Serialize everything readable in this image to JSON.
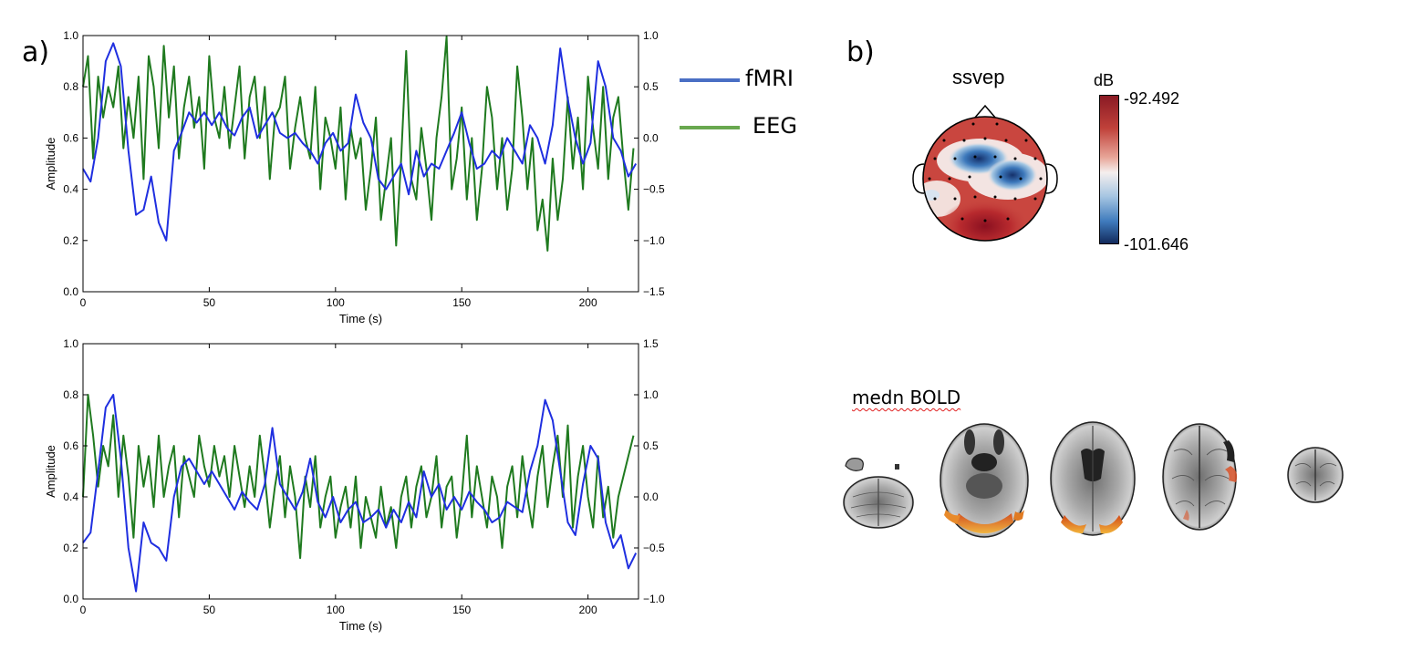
{
  "panel_labels": {
    "a": "a)",
    "b": "b)"
  },
  "legend": [
    {
      "label": "fMRI",
      "color": "#4a6fc4"
    },
    {
      "label": "EEG",
      "color": "#69a84f"
    }
  ],
  "chart_data": [
    {
      "type": "line",
      "xlabel": "Time (s)",
      "ylabel": "Amplitude",
      "xlim": [
        0,
        220
      ],
      "ylim_left": [
        0.0,
        1.0
      ],
      "ylim_right": [
        -1.5,
        1.0
      ],
      "xticks": [
        "0",
        "50",
        "100",
        "150",
        "200"
      ],
      "yticks_left": [
        "0.0",
        "0.2",
        "0.4",
        "0.6",
        "0.8",
        "1.0"
      ],
      "yticks_right": [
        "−1.5",
        "−1.0",
        "−0.5",
        "0.0",
        "0.5",
        "1.0"
      ],
      "series": [
        {
          "name": "fMRI",
          "axis": "left",
          "color": "#1f2fe0",
          "x": [
            0,
            3,
            6,
            9,
            12,
            15,
            18,
            21,
            24,
            27,
            30,
            33,
            36,
            39,
            42,
            45,
            48,
            51,
            54,
            57,
            60,
            63,
            66,
            69,
            72,
            75,
            78,
            81,
            84,
            87,
            90,
            93,
            96,
            99,
            102,
            105,
            108,
            111,
            114,
            117,
            120,
            123,
            126,
            129,
            132,
            135,
            138,
            141,
            144,
            147,
            150,
            153,
            156,
            159,
            162,
            165,
            168,
            171,
            174,
            177,
            180,
            183,
            186,
            189,
            192,
            195,
            198,
            201,
            204,
            207,
            210,
            213,
            216,
            219
          ],
          "values": [
            0.48,
            0.43,
            0.6,
            0.9,
            0.97,
            0.88,
            0.55,
            0.3,
            0.32,
            0.45,
            0.27,
            0.2,
            0.55,
            0.62,
            0.7,
            0.66,
            0.7,
            0.65,
            0.7,
            0.64,
            0.61,
            0.68,
            0.72,
            0.6,
            0.65,
            0.7,
            0.62,
            0.6,
            0.62,
            0.58,
            0.55,
            0.5,
            0.58,
            0.62,
            0.55,
            0.58,
            0.77,
            0.66,
            0.6,
            0.44,
            0.4,
            0.45,
            0.5,
            0.38,
            0.55,
            0.45,
            0.5,
            0.48,
            0.55,
            0.62,
            0.7,
            0.58,
            0.48,
            0.5,
            0.55,
            0.52,
            0.6,
            0.55,
            0.5,
            0.65,
            0.6,
            0.5,
            0.65,
            0.95,
            0.75,
            0.6,
            0.5,
            0.58,
            0.9,
            0.8,
            0.6,
            0.55,
            0.45,
            0.5
          ]
        },
        {
          "name": "EEG",
          "axis": "right",
          "color": "#1f7a1f",
          "x": [
            0,
            2,
            4,
            6,
            8,
            10,
            12,
            14,
            16,
            18,
            20,
            22,
            24,
            26,
            28,
            30,
            32,
            34,
            36,
            38,
            40,
            42,
            44,
            46,
            48,
            50,
            52,
            54,
            56,
            58,
            60,
            62,
            64,
            66,
            68,
            70,
            72,
            74,
            76,
            78,
            80,
            82,
            84,
            86,
            88,
            90,
            92,
            94,
            96,
            98,
            100,
            102,
            104,
            106,
            108,
            110,
            112,
            114,
            116,
            118,
            120,
            122,
            124,
            126,
            128,
            130,
            132,
            134,
            136,
            138,
            140,
            142,
            144,
            146,
            148,
            150,
            152,
            154,
            156,
            158,
            160,
            162,
            164,
            166,
            168,
            170,
            172,
            174,
            176,
            178,
            180,
            182,
            184,
            186,
            188,
            190,
            192,
            194,
            196,
            198,
            200,
            202,
            204,
            206,
            208,
            210,
            212,
            214,
            216,
            218
          ],
          "values": [
            0.5,
            0.8,
            -0.2,
            0.6,
            0.2,
            0.5,
            0.3,
            0.7,
            -0.1,
            0.4,
            0.0,
            0.6,
            -0.4,
            0.8,
            0.5,
            -0.1,
            0.9,
            0.2,
            0.7,
            -0.2,
            0.3,
            0.6,
            0.1,
            0.4,
            -0.3,
            0.8,
            0.2,
            0.0,
            0.5,
            -0.1,
            0.3,
            0.7,
            -0.2,
            0.4,
            0.6,
            0.0,
            0.5,
            -0.4,
            0.2,
            0.3,
            0.6,
            -0.3,
            0.1,
            0.4,
            0.0,
            -0.2,
            0.5,
            -0.5,
            0.2,
            0.0,
            -0.3,
            0.3,
            -0.6,
            0.1,
            -0.2,
            0.0,
            -0.7,
            -0.3,
            0.2,
            -0.8,
            -0.4,
            0.0,
            -1.05,
            -0.2,
            0.85,
            -0.4,
            -0.6,
            0.1,
            -0.3,
            -0.8,
            0.0,
            0.4,
            0.99,
            -0.5,
            -0.2,
            0.3,
            -0.6,
            0.0,
            -0.8,
            -0.3,
            0.5,
            0.2,
            -0.5,
            0.0,
            -0.7,
            -0.3,
            0.7,
            0.2,
            -0.5,
            0.0,
            -0.9,
            -0.6,
            -1.1,
            -0.2,
            -0.8,
            -0.4,
            0.4,
            -0.3,
            0.2,
            -0.5,
            0.6,
            0.1,
            -0.3,
            0.5,
            -0.4,
            0.2,
            0.4,
            -0.2,
            -0.7,
            -0.1
          ]
        }
      ]
    },
    {
      "type": "line",
      "xlabel": "Time (s)",
      "ylabel": "Amplitude",
      "xlim": [
        0,
        220
      ],
      "ylim_left": [
        0.0,
        1.0
      ],
      "ylim_right": [
        -1.0,
        1.5
      ],
      "xticks": [
        "0",
        "50",
        "100",
        "150",
        "200"
      ],
      "yticks_left": [
        "0.0",
        "0.2",
        "0.4",
        "0.6",
        "0.8",
        "1.0"
      ],
      "yticks_right": [
        "−1.0",
        "−0.5",
        "0.0",
        "0.5",
        "1.0",
        "1.5"
      ],
      "series": [
        {
          "name": "fMRI",
          "axis": "left",
          "color": "#1f2fe0",
          "x": [
            0,
            3,
            6,
            9,
            12,
            15,
            18,
            21,
            24,
            27,
            30,
            33,
            36,
            39,
            42,
            45,
            48,
            51,
            54,
            57,
            60,
            63,
            66,
            69,
            72,
            75,
            78,
            81,
            84,
            87,
            90,
            93,
            96,
            99,
            102,
            105,
            108,
            111,
            114,
            117,
            120,
            123,
            126,
            129,
            132,
            135,
            138,
            141,
            144,
            147,
            150,
            153,
            156,
            159,
            162,
            165,
            168,
            171,
            174,
            177,
            180,
            183,
            186,
            189,
            192,
            195,
            198,
            201,
            204,
            207,
            210,
            213,
            216,
            219
          ],
          "values": [
            0.22,
            0.26,
            0.5,
            0.75,
            0.8,
            0.55,
            0.2,
            0.03,
            0.3,
            0.22,
            0.2,
            0.15,
            0.4,
            0.52,
            0.55,
            0.5,
            0.45,
            0.5,
            0.45,
            0.4,
            0.35,
            0.42,
            0.38,
            0.35,
            0.45,
            0.67,
            0.45,
            0.4,
            0.35,
            0.42,
            0.55,
            0.38,
            0.32,
            0.4,
            0.3,
            0.35,
            0.38,
            0.3,
            0.32,
            0.35,
            0.28,
            0.35,
            0.3,
            0.38,
            0.32,
            0.5,
            0.4,
            0.45,
            0.35,
            0.4,
            0.35,
            0.42,
            0.38,
            0.35,
            0.3,
            0.32,
            0.38,
            0.36,
            0.34,
            0.5,
            0.6,
            0.78,
            0.7,
            0.5,
            0.3,
            0.25,
            0.45,
            0.6,
            0.55,
            0.3,
            0.2,
            0.25,
            0.12,
            0.18
          ]
        },
        {
          "name": "EEG",
          "axis": "right",
          "color": "#1f7a1f",
          "x": [
            0,
            2,
            4,
            6,
            8,
            10,
            12,
            14,
            16,
            18,
            20,
            22,
            24,
            26,
            28,
            30,
            32,
            34,
            36,
            38,
            40,
            42,
            44,
            46,
            48,
            50,
            52,
            54,
            56,
            58,
            60,
            62,
            64,
            66,
            68,
            70,
            72,
            74,
            76,
            78,
            80,
            82,
            84,
            86,
            88,
            90,
            92,
            94,
            96,
            98,
            100,
            102,
            104,
            106,
            108,
            110,
            112,
            114,
            116,
            118,
            120,
            122,
            124,
            126,
            128,
            130,
            132,
            134,
            136,
            138,
            140,
            142,
            144,
            146,
            148,
            150,
            152,
            154,
            156,
            158,
            160,
            162,
            164,
            166,
            168,
            170,
            172,
            174,
            176,
            178,
            180,
            182,
            184,
            186,
            188,
            190,
            192,
            194,
            196,
            198,
            200,
            202,
            204,
            206,
            208,
            210,
            212,
            214,
            216,
            218
          ],
          "values": [
            0.0,
            1.0,
            0.6,
            0.1,
            0.5,
            0.3,
            0.8,
            0.0,
            0.6,
            0.2,
            -0.4,
            0.5,
            0.1,
            0.4,
            -0.1,
            0.6,
            0.0,
            0.3,
            0.5,
            -0.2,
            0.4,
            0.2,
            0.0,
            0.6,
            0.3,
            0.1,
            0.5,
            0.2,
            0.4,
            0.0,
            0.5,
            0.2,
            -0.1,
            0.3,
            0.0,
            0.6,
            0.2,
            -0.3,
            0.1,
            0.4,
            -0.2,
            0.3,
            0.0,
            -0.6,
            0.2,
            -0.1,
            0.4,
            -0.3,
            0.0,
            0.2,
            -0.4,
            -0.1,
            0.1,
            -0.3,
            0.2,
            -0.5,
            0.0,
            -0.2,
            -0.4,
            0.1,
            -0.3,
            -0.1,
            -0.5,
            0.0,
            0.2,
            -0.3,
            0.1,
            0.3,
            -0.2,
            0.0,
            0.4,
            -0.3,
            0.1,
            0.2,
            -0.4,
            0.0,
            0.6,
            -0.2,
            0.3,
            0.0,
            -0.3,
            0.2,
            0.0,
            -0.5,
            0.1,
            0.3,
            -0.2,
            0.4,
            0.0,
            -0.3,
            0.2,
            0.5,
            -0.1,
            0.3,
            0.6,
            0.0,
            0.7,
            -0.3,
            0.2,
            0.5,
            0.0,
            -0.3,
            0.4,
            -0.2,
            0.1,
            -0.4,
            0.0,
            0.2,
            0.4,
            0.6
          ]
        }
      ]
    }
  ],
  "topomap": {
    "title": "ssvep",
    "colorbar_unit": "dB",
    "colorbar_max": "-92.492",
    "colorbar_min": "-101.646"
  },
  "brain": {
    "title": "medn BOLD"
  }
}
